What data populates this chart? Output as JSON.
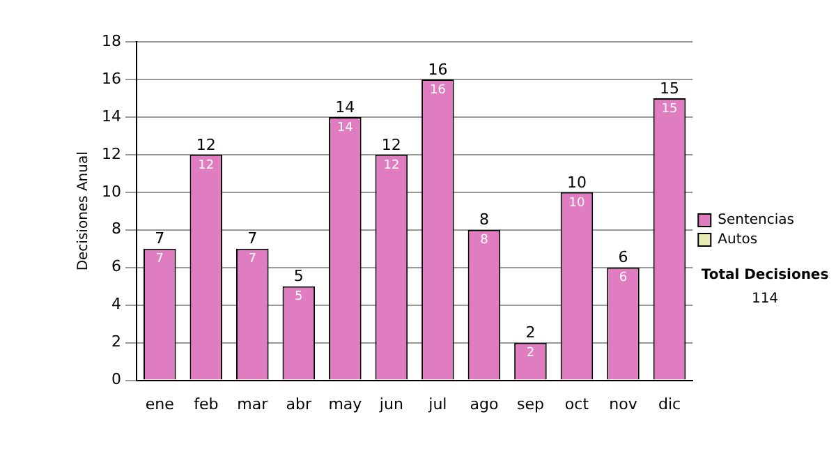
{
  "chart_data": {
    "type": "bar",
    "stacked": true,
    "ylabel": "Decisiones Anual",
    "categories": [
      "ene",
      "feb",
      "mar",
      "abr",
      "may",
      "jun",
      "jul",
      "ago",
      "sep",
      "oct",
      "nov",
      "dic"
    ],
    "series": [
      {
        "name": "Sentencias",
        "color": "#e07cc0",
        "values": [
          7,
          12,
          7,
          5,
          14,
          12,
          16,
          8,
          2,
          10,
          6,
          15
        ],
        "value_labels": [
          "7",
          "12",
          "7",
          "5",
          "14",
          "12",
          "16",
          "8",
          "2",
          "10",
          "6",
          "15"
        ]
      },
      {
        "name": "Autos",
        "color": "#e8ecb4",
        "values": [
          0,
          0,
          0,
          0,
          0,
          0,
          0,
          0,
          0,
          0,
          0,
          0
        ]
      }
    ],
    "totals": [
      "7",
      "12",
      "7",
      "5",
      "14",
      "12",
      "16",
      "8",
      "2",
      "10",
      "6",
      "15"
    ],
    "ylim": [
      0,
      18
    ],
    "yticks": [
      0,
      2,
      4,
      6,
      8,
      10,
      12,
      14,
      16,
      18
    ],
    "grid": "y",
    "legend": "right",
    "annotations": [
      "Total Decisiones",
      "114"
    ]
  }
}
